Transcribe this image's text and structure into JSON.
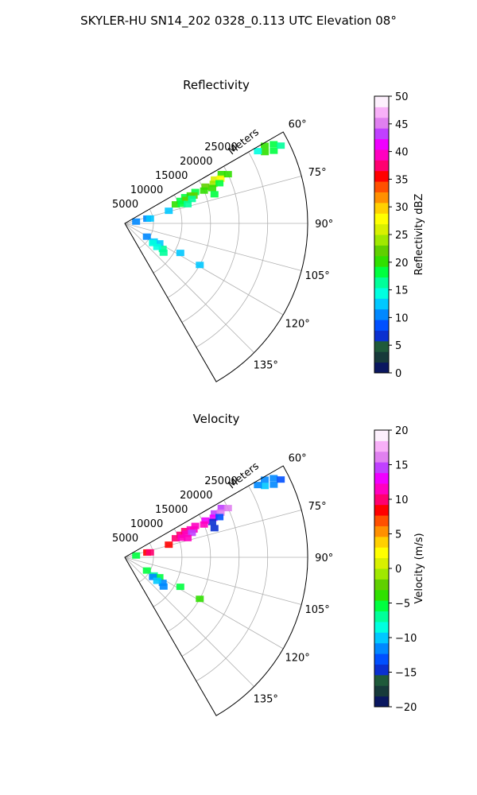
{
  "suptitle": "SKYLER-HU  SN14_202  0328_0.113 UTC Elevation 08°",
  "chart_data": [
    {
      "type": "heatmap",
      "projection": "polar-sector",
      "title": "Reflectivity",
      "radial_label": "Meters",
      "radial_ticks": [
        5000,
        10000,
        15000,
        20000,
        25000
      ],
      "radial_tick_labels": [
        "5000",
        "10000",
        "15000",
        "20000",
        "25000"
      ],
      "rlim": [
        0,
        32000
      ],
      "theta_range_deg": [
        60,
        150
      ],
      "theta_ticks_deg": [
        60,
        75,
        90,
        105,
        120,
        135
      ],
      "theta_tick_labels": [
        "60°",
        "75°",
        "90°",
        "105°",
        "120°",
        "135°"
      ],
      "grid": true,
      "colorbar": {
        "label": "Reflectivity dBZ",
        "vmin": 0,
        "vmax": 50,
        "ticks": [
          0,
          5,
          10,
          15,
          20,
          25,
          30,
          35,
          40,
          45,
          50
        ],
        "tick_labels": [
          "0",
          "5",
          "10",
          "15",
          "20",
          "25",
          "30",
          "35",
          "40",
          "45",
          "50"
        ],
        "colors": [
          "#0a1760",
          "#173a3a",
          "#1f5a3a",
          "#0a30d0",
          "#0050ff",
          "#0088ff",
          "#00c8ff",
          "#00ffe0",
          "#00ff9a",
          "#00ff40",
          "#30e000",
          "#60d000",
          "#a0e800",
          "#d8f000",
          "#ffff00",
          "#ffd000",
          "#ff9000",
          "#ff5000",
          "#ff0000",
          "#ff0070",
          "#ff00c0",
          "#f000ff",
          "#c040ff",
          "#e080f0",
          "#f8b0f8",
          "#fdf0fd"
        ]
      },
      "echoes": [
        {
          "theta": 61,
          "r": 28000,
          "value": 20
        },
        {
          "theta": 62,
          "r": 29500,
          "value": 18
        },
        {
          "theta": 63,
          "r": 27500,
          "value": 21
        },
        {
          "theta": 64,
          "r": 29000,
          "value": 19
        },
        {
          "theta": 61.5,
          "r": 26500,
          "value": 15
        },
        {
          "theta": 63.5,
          "r": 30500,
          "value": 17
        },
        {
          "theta": 63,
          "r": 19000,
          "value": 20
        },
        {
          "theta": 64,
          "r": 17500,
          "value": 26
        },
        {
          "theta": 65,
          "r": 18500,
          "value": 28
        },
        {
          "theta": 66,
          "r": 17000,
          "value": 24
        },
        {
          "theta": 67,
          "r": 18000,
          "value": 19
        },
        {
          "theta": 68,
          "r": 16500,
          "value": 20
        },
        {
          "theta": 65.5,
          "r": 15500,
          "value": 22
        },
        {
          "theta": 64.5,
          "r": 20000,
          "value": 21
        },
        {
          "theta": 67.5,
          "r": 15000,
          "value": 21
        },
        {
          "theta": 66,
          "r": 13500,
          "value": 18
        },
        {
          "theta": 66.5,
          "r": 11500,
          "value": 19
        },
        {
          "theta": 67,
          "r": 12500,
          "value": 20
        },
        {
          "theta": 68,
          "r": 10500,
          "value": 18
        },
        {
          "theta": 68,
          "r": 13000,
          "value": 22
        },
        {
          "theta": 69,
          "r": 11500,
          "value": 23
        },
        {
          "theta": 70,
          "r": 12500,
          "value": 17
        },
        {
          "theta": 69.5,
          "r": 9500,
          "value": 20
        },
        {
          "theta": 71,
          "r": 10500,
          "value": 18
        },
        {
          "theta": 72,
          "r": 16500,
          "value": 18
        },
        {
          "theta": 73,
          "r": 11500,
          "value": 16
        },
        {
          "theta": 74,
          "r": 8000,
          "value": 12
        },
        {
          "theta": 78,
          "r": 4000,
          "value": 10
        },
        {
          "theta": 79,
          "r": 4500,
          "value": 12
        },
        {
          "theta": 81,
          "r": 2000,
          "value": 11
        },
        {
          "theta": 121,
          "r": 4500,
          "value": 11
        },
        {
          "theta": 122,
          "r": 6000,
          "value": 12
        },
        {
          "theta": 120,
          "r": 7000,
          "value": 13
        },
        {
          "theta": 125,
          "r": 6000,
          "value": 15
        },
        {
          "theta": 124,
          "r": 8000,
          "value": 16
        },
        {
          "theta": 126,
          "r": 7000,
          "value": 14
        },
        {
          "theta": 127,
          "r": 8500,
          "value": 17
        },
        {
          "theta": 118,
          "r": 11000,
          "value": 12
        },
        {
          "theta": 119,
          "r": 15000,
          "value": 13
        }
      ]
    },
    {
      "type": "heatmap",
      "projection": "polar-sector",
      "title": "Velocity",
      "radial_label": "Meters",
      "radial_ticks": [
        5000,
        10000,
        15000,
        20000,
        25000
      ],
      "radial_tick_labels": [
        "5000",
        "10000",
        "15000",
        "20000",
        "25000"
      ],
      "rlim": [
        0,
        32000
      ],
      "theta_range_deg": [
        60,
        150
      ],
      "theta_ticks_deg": [
        60,
        75,
        90,
        105,
        120,
        135
      ],
      "theta_tick_labels": [
        "60°",
        "75°",
        "90°",
        "105°",
        "120°",
        "135°"
      ],
      "grid": true,
      "colorbar": {
        "label": "Velocity (m/s)",
        "vmin": -20,
        "vmax": 20,
        "ticks": [
          -20,
          -15,
          -10,
          -5,
          0,
          5,
          10,
          15,
          20
        ],
        "tick_labels": [
          "−20",
          "−15",
          "−10",
          "−5",
          "0",
          "5",
          "10",
          "15",
          "20"
        ],
        "colors": [
          "#0a1760",
          "#173a3a",
          "#1f5a3a",
          "#0a30d0",
          "#0050ff",
          "#0088ff",
          "#00c8ff",
          "#00ffe0",
          "#00ff9a",
          "#00ff40",
          "#30e000",
          "#60d000",
          "#a0e800",
          "#d8f000",
          "#ffff00",
          "#ffd000",
          "#ff9000",
          "#ff5000",
          "#ff0000",
          "#ff0070",
          "#ff00c0",
          "#f000ff",
          "#c040ff",
          "#e080f0",
          "#f8b0f8",
          "#fdf0fd"
        ]
      },
      "echoes": [
        {
          "theta": 61,
          "r": 28000,
          "value": -11
        },
        {
          "theta": 62,
          "r": 29500,
          "value": -12
        },
        {
          "theta": 63,
          "r": 27500,
          "value": -10
        },
        {
          "theta": 64,
          "r": 29000,
          "value": -11
        },
        {
          "theta": 61.5,
          "r": 26500,
          "value": -12
        },
        {
          "theta": 63.5,
          "r": 30500,
          "value": -13
        },
        {
          "theta": 63,
          "r": 19000,
          "value": 15
        },
        {
          "theta": 64,
          "r": 17500,
          "value": 14
        },
        {
          "theta": 65,
          "r": 18500,
          "value": 16
        },
        {
          "theta": 66,
          "r": 17000,
          "value": 13
        },
        {
          "theta": 67,
          "r": 18000,
          "value": -13
        },
        {
          "theta": 68,
          "r": 16500,
          "value": -15
        },
        {
          "theta": 65.5,
          "r": 15500,
          "value": 13
        },
        {
          "theta": 64.5,
          "r": 20000,
          "value": 16
        },
        {
          "theta": 67.5,
          "r": 15000,
          "value": 12
        },
        {
          "theta": 66,
          "r": 13500,
          "value": 12
        },
        {
          "theta": 66.5,
          "r": 11500,
          "value": 10
        },
        {
          "theta": 67,
          "r": 12500,
          "value": 11
        },
        {
          "theta": 68,
          "r": 10500,
          "value": 10
        },
        {
          "theta": 68,
          "r": 13000,
          "value": 12
        },
        {
          "theta": 69,
          "r": 11500,
          "value": 11
        },
        {
          "theta": 70,
          "r": 12500,
          "value": 14
        },
        {
          "theta": 69.5,
          "r": 9500,
          "value": 10
        },
        {
          "theta": 71,
          "r": 10500,
          "value": 11
        },
        {
          "theta": 72,
          "r": 16500,
          "value": -14
        },
        {
          "theta": 73,
          "r": 11500,
          "value": 12
        },
        {
          "theta": 74,
          "r": 8000,
          "value": 9
        },
        {
          "theta": 78,
          "r": 4000,
          "value": 9
        },
        {
          "theta": 79,
          "r": 4500,
          "value": 10
        },
        {
          "theta": 81,
          "r": 2000,
          "value": -5
        },
        {
          "theta": 121,
          "r": 4500,
          "value": -6
        },
        {
          "theta": 122,
          "r": 6000,
          "value": -7
        },
        {
          "theta": 120,
          "r": 7000,
          "value": -6
        },
        {
          "theta": 125,
          "r": 6000,
          "value": -11
        },
        {
          "theta": 124,
          "r": 8000,
          "value": -12
        },
        {
          "theta": 126,
          "r": 7000,
          "value": -10
        },
        {
          "theta": 127,
          "r": 8500,
          "value": -11
        },
        {
          "theta": 118,
          "r": 11000,
          "value": -5
        },
        {
          "theta": 119,
          "r": 15000,
          "value": -4
        }
      ]
    }
  ]
}
